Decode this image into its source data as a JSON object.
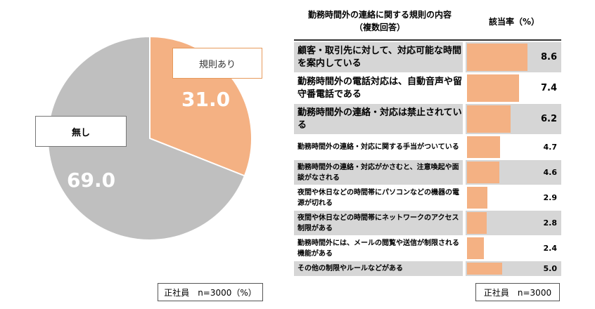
{
  "pie": {
    "slices": [
      {
        "label": "規則あり",
        "value": 31.0,
        "value_text": "31.0",
        "color": "#f4b183"
      },
      {
        "label": "無し",
        "value": 69.0,
        "value_text": "69.0",
        "color": "#bfbfbf"
      }
    ],
    "note": "正社員　n=3000（%）"
  },
  "table": {
    "header_left_line1": "勤務時間外の連絡に関する規則の内容",
    "header_left_line2": "（複数回答）",
    "header_right": "該当率（%）",
    "note": "正社員　n=3000",
    "bar_color": "#f4b183"
  },
  "chart_data": [
    {
      "type": "pie",
      "categories": [
        "規則あり",
        "無し"
      ],
      "values": [
        31.0,
        69.0
      ]
    },
    {
      "type": "bar",
      "title": "勤務時間外の連絡に関する規則の内容（複数回答）",
      "ylabel": "該当率（%）",
      "categories": [
        "顧客・取引先に対して、対応可能な時間を案内している",
        "勤務時間外の電話対応は、自動音声や留守番電話である",
        "勤務時間外の連絡・対応は禁止されている",
        "勤務時間外の連絡・対応に関する手当がついている",
        "勤務時間外の連絡・対応がかさむと、注意喚起や面談がなされる",
        "夜間や休日などの時間帯にパソコンなどの機器の電源が切れる",
        "夜間や休日などの時間帯にネットワークのアクセス制限がある",
        "勤務時間外には、メールの閲覧や送信が制限される機能がある",
        "その他の制限やルールなどがある"
      ],
      "values": [
        8.6,
        7.4,
        6.2,
        4.7,
        4.6,
        2.9,
        2.8,
        2.4,
        5.0
      ],
      "value_texts": [
        "8.6",
        "7.4",
        "6.2",
        "4.7",
        "4.6",
        "2.9",
        "2.8",
        "2.4",
        "5.0"
      ],
      "xlim": [
        0,
        10
      ]
    }
  ]
}
